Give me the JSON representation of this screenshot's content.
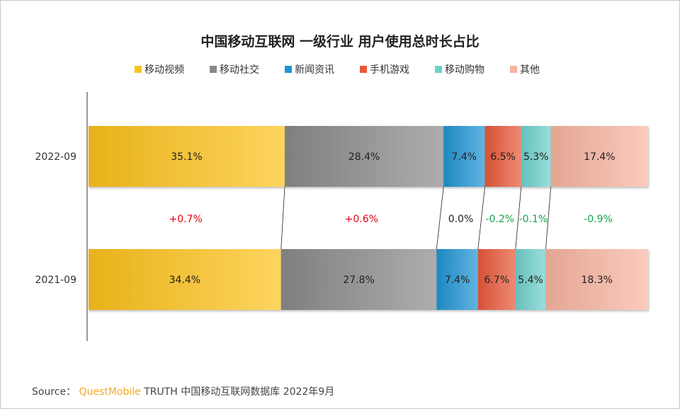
{
  "title": "中国移动互联网 一级行业 用户使用总时长占比",
  "chart_data": {
    "type": "bar",
    "orientation": "horizontal-stacked-100",
    "title": "中国移动互联网 一级行业 用户使用总时长占比",
    "legend_position": "top",
    "categories": [
      "2022-09",
      "2021-09"
    ],
    "series": [
      {
        "name": "移动视频",
        "values": [
          35.1,
          34.4
        ],
        "color": "#fcc21b",
        "delta": "+0.7%"
      },
      {
        "name": "移动社交",
        "values": [
          28.4,
          27.8
        ],
        "color": "#8a8a8a",
        "delta": "+0.6%"
      },
      {
        "name": "新闻资讯",
        "values": [
          7.4,
          7.4
        ],
        "color": "#1f94d2",
        "delta": "0.0%"
      },
      {
        "name": "手机游戏",
        "values": [
          6.5,
          6.7
        ],
        "color": "#e8583a",
        "delta": "-0.2%"
      },
      {
        "name": "移动购物",
        "values": [
          5.3,
          5.4
        ],
        "color": "#6fd0cc",
        "delta": "-0.1%"
      },
      {
        "name": "其他",
        "values": [
          17.4,
          18.3
        ],
        "color": "#f8b4a0",
        "delta": "-0.9%"
      }
    ],
    "data_labels": [
      [
        "35.1%",
        "28.4%",
        "7.4%",
        "6.5%",
        "5.3%",
        "17.4%"
      ],
      [
        "34.4%",
        "27.8%",
        "7.4%",
        "6.7%",
        "5.4%",
        "18.3%"
      ]
    ],
    "delta_colors": {
      "positive": "#e60012",
      "zero": "#222222",
      "negative": "#1aa34a"
    }
  },
  "source": {
    "label": "Source：",
    "brand": "QuestMobile",
    "text": "TRUTH 中国移动互联网数据库 2022年9月"
  }
}
